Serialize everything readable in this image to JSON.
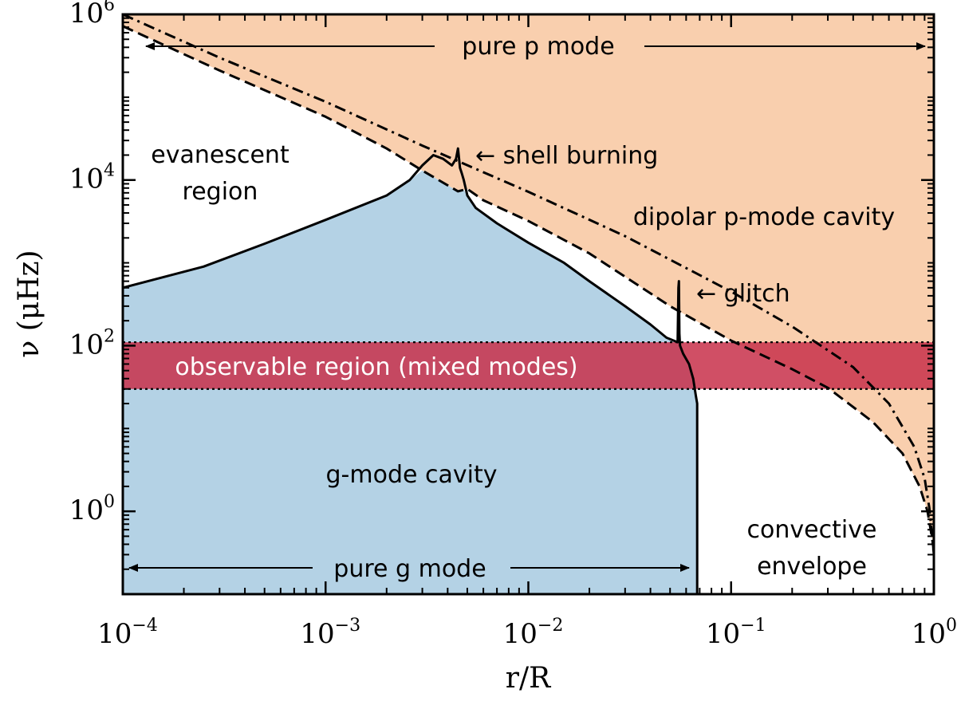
{
  "chart_data": {
    "type": "line",
    "xlabel": "r/R",
    "ylabel": "ν (μHz)",
    "x_scale": "log",
    "y_scale": "log",
    "xlim": [
      0.0001,
      1
    ],
    "ylim": [
      0.1,
      1000000
    ],
    "x_ticks": [
      {
        "base": "10",
        "exp": "−4",
        "value": 0.0001
      },
      {
        "base": "10",
        "exp": "−3",
        "value": 0.001
      },
      {
        "base": "10",
        "exp": "−2",
        "value": 0.01
      },
      {
        "base": "10",
        "exp": "−1",
        "value": 0.1
      },
      {
        "base": "10",
        "exp": "0",
        "value": 1
      }
    ],
    "y_ticks": [
      {
        "base": "10",
        "exp": "0",
        "value": 1
      },
      {
        "base": "10",
        "exp": "2",
        "value": 100
      },
      {
        "base": "10",
        "exp": "4",
        "value": 10000
      },
      {
        "base": "10",
        "exp": "6",
        "value": 1000000
      }
    ],
    "colors": {
      "p_cavity": "#f9cfae",
      "g_cavity": "#b4d2e5",
      "observable_band": "#c8304a",
      "lines": "#000000",
      "band_text": "#ffffff"
    },
    "observable_band": [
      30,
      110
    ],
    "series": [
      {
        "style": "solid",
        "x": [
          0.0001,
          0.00025,
          0.0005,
          0.001,
          0.002,
          0.0026,
          0.003,
          0.0034,
          0.0038,
          0.0042,
          0.0044,
          0.0045,
          0.0046,
          0.0047,
          0.0048,
          0.005,
          0.0055,
          0.007,
          0.01,
          0.015,
          0.02,
          0.03,
          0.04,
          0.048,
          0.0545,
          0.055,
          0.0553,
          0.0556,
          0.056,
          0.058,
          0.062,
          0.065,
          0.067,
          0.068,
          0.068
        ],
        "y": [
          500,
          900,
          1700,
          3300,
          6500,
          10000,
          15000,
          20000,
          18000,
          15000,
          18000,
          24000,
          14000,
          12000,
          10000,
          6500,
          4600,
          3000,
          1750,
          1000,
          600,
          300,
          180,
          125,
          110,
          500,
          600,
          140,
          100,
          80,
          60,
          40,
          25,
          20,
          0.1
        ]
      },
      {
        "style": "dashed",
        "x": [
          0.0001,
          0.0003,
          0.001,
          0.002,
          0.003,
          0.0045,
          0.005,
          0.006,
          0.01,
          0.02,
          0.05,
          0.1,
          0.2,
          0.3,
          0.5,
          0.7,
          0.85,
          0.93,
          0.97,
          0.99,
          1
        ],
        "y": [
          720000,
          210000,
          58000,
          24000,
          13000,
          7300,
          7800,
          5700,
          3200,
          1300,
          300,
          115,
          52,
          31,
          12,
          5,
          2,
          1,
          0.55,
          0.4,
          0.3
        ]
      },
      {
        "style": "dashdot",
        "x": [
          0.0001,
          0.0003,
          0.001,
          0.003,
          0.01,
          0.03,
          0.1,
          0.2,
          0.4,
          0.6,
          0.8,
          0.9,
          0.95,
          0.98,
          1
        ],
        "y": [
          1000000,
          300000,
          88000,
          26000,
          7200,
          2100,
          450,
          170,
          55,
          20,
          6,
          2.5,
          1.1,
          0.5,
          0.3
        ]
      }
    ],
    "annotations": {
      "pure_p": "pure p mode",
      "evanescent_1": "evanescent",
      "evanescent_2": "region",
      "shell": "← shell burning",
      "dipolar": "dipolar p-mode cavity",
      "glitch": "← glitch",
      "observable": "observable region (mixed modes)",
      "gcavity": "g-mode cavity",
      "pure_g": "pure g mode",
      "convective_1": "convective",
      "convective_2": "envelope"
    }
  }
}
